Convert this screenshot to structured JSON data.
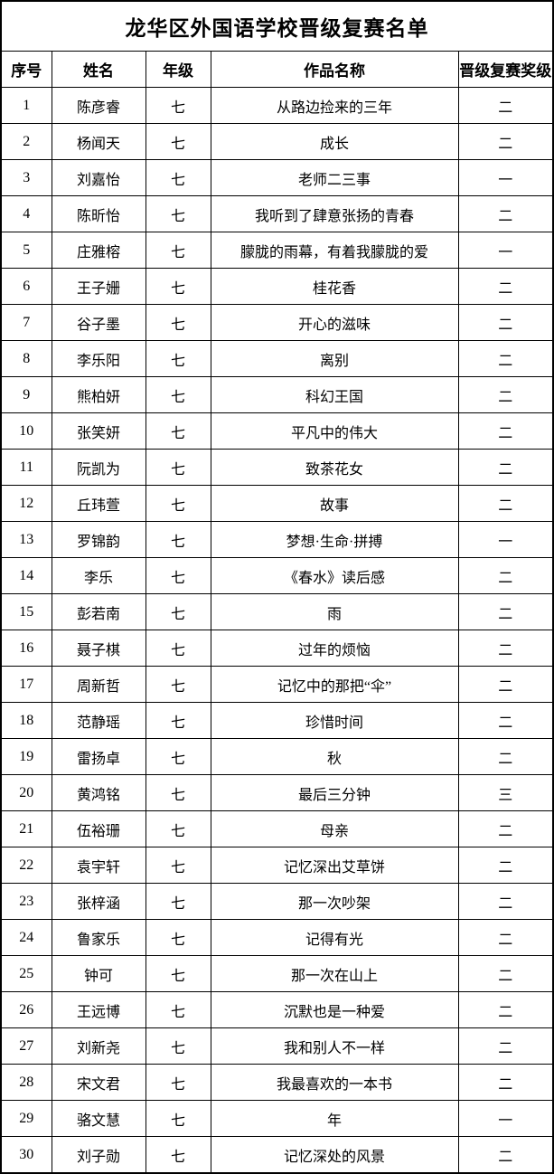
{
  "title": "龙华区外国语学校晋级复赛名单",
  "table": {
    "headers": [
      {
        "key": "no",
        "label": "序号"
      },
      {
        "key": "name",
        "label": "姓名"
      },
      {
        "key": "grade",
        "label": "年级"
      },
      {
        "key": "work",
        "label": "作品名称"
      },
      {
        "key": "award",
        "label": "晋级复赛奖级"
      }
    ],
    "rows": [
      {
        "no": "1",
        "name": "陈彦睿",
        "grade": "七",
        "work": "从路边捡来的三年",
        "award": "二"
      },
      {
        "no": "2",
        "name": "杨闻天",
        "grade": "七",
        "work": "成长",
        "award": "二"
      },
      {
        "no": "3",
        "name": "刘嘉怡",
        "grade": "七",
        "work": "老师二三事",
        "award": "一"
      },
      {
        "no": "4",
        "name": "陈昕怡",
        "grade": "七",
        "work": "我听到了肆意张扬的青春",
        "award": "二"
      },
      {
        "no": "5",
        "name": "庄雅榕",
        "grade": "七",
        "work": "朦胧的雨幕，有着我朦胧的爱",
        "award": "一"
      },
      {
        "no": "6",
        "name": "王子姗",
        "grade": "七",
        "work": "桂花香",
        "award": "二"
      },
      {
        "no": "7",
        "name": "谷子墨",
        "grade": "七",
        "work": "开心的滋味",
        "award": "二"
      },
      {
        "no": "8",
        "name": "李乐阳",
        "grade": "七",
        "work": "离别",
        "award": "二"
      },
      {
        "no": "9",
        "name": "熊柏妍",
        "grade": "七",
        "work": "科幻王国",
        "award": "二"
      },
      {
        "no": "10",
        "name": "张笑妍",
        "grade": "七",
        "work": "平凡中的伟大",
        "award": "二"
      },
      {
        "no": "11",
        "name": "阮凯为",
        "grade": "七",
        "work": "致茶花女",
        "award": "二"
      },
      {
        "no": "12",
        "name": "丘玮萱",
        "grade": "七",
        "work": "故事",
        "award": "二"
      },
      {
        "no": "13",
        "name": "罗锦韵",
        "grade": "七",
        "work": "梦想·生命·拼搏",
        "award": "一"
      },
      {
        "no": "14",
        "name": "李乐",
        "grade": "七",
        "work": "《春水》读后感",
        "award": "二"
      },
      {
        "no": "15",
        "name": "彭若南",
        "grade": "七",
        "work": "雨",
        "award": "二"
      },
      {
        "no": "16",
        "name": "聂子棋",
        "grade": "七",
        "work": "过年的烦恼",
        "award": "二"
      },
      {
        "no": "17",
        "name": "周新哲",
        "grade": "七",
        "work": "记忆中的那把“伞”",
        "award": "二"
      },
      {
        "no": "18",
        "name": "范静瑶",
        "grade": "七",
        "work": "珍惜时间",
        "award": "二"
      },
      {
        "no": "19",
        "name": "雷扬卓",
        "grade": "七",
        "work": "秋",
        "award": "二"
      },
      {
        "no": "20",
        "name": "黄鸿铭",
        "grade": "七",
        "work": "最后三分钟",
        "award": "三"
      },
      {
        "no": "21",
        "name": "伍裕珊",
        "grade": "七",
        "work": "母亲",
        "award": "二"
      },
      {
        "no": "22",
        "name": "袁宇轩",
        "grade": "七",
        "work": "记忆深出艾草饼",
        "award": "二"
      },
      {
        "no": "23",
        "name": "张梓涵",
        "grade": "七",
        "work": "那一次吵架",
        "award": "二"
      },
      {
        "no": "24",
        "name": "鲁家乐",
        "grade": "七",
        "work": "记得有光",
        "award": "二"
      },
      {
        "no": "25",
        "name": "钟可",
        "grade": "七",
        "work": "那一次在山上",
        "award": "二"
      },
      {
        "no": "26",
        "name": "王远博",
        "grade": "七",
        "work": "沉默也是一种爱",
        "award": "二"
      },
      {
        "no": "27",
        "name": "刘新尧",
        "grade": "七",
        "work": "我和别人不一样",
        "award": "二"
      },
      {
        "no": "28",
        "name": "宋文君",
        "grade": "七",
        "work": "我最喜欢的一本书",
        "award": "二"
      },
      {
        "no": "29",
        "name": "骆文慧",
        "grade": "七",
        "work": "年",
        "award": "一"
      },
      {
        "no": "30",
        "name": "刘子勋",
        "grade": "七",
        "work": "记忆深处的风景",
        "award": "二"
      }
    ]
  },
  "colors": {
    "text": "#000000",
    "background": "#ffffff",
    "border": "#000000"
  }
}
